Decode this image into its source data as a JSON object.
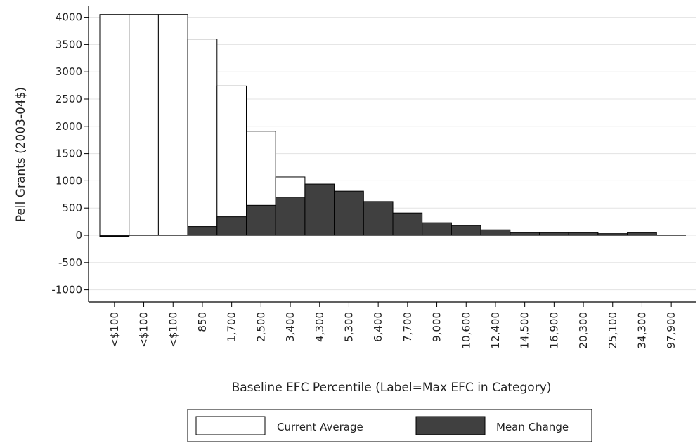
{
  "chart_data": {
    "type": "bar",
    "title": "",
    "xlabel": "Baseline EFC Percentile (Label=Max EFC in Category)",
    "ylabel": "Pell Grants (2003-04$)",
    "ylim": [
      -1000,
      4000
    ],
    "yticks": [
      4000,
      3500,
      3000,
      2500,
      2000,
      1500,
      1000,
      500,
      0,
      -500,
      -1000
    ],
    "grid": true,
    "legend_position": "bottom",
    "categories": [
      "<$100",
      "<$100",
      "<$100",
      "850",
      "1,700",
      "2,500",
      "3,400",
      "4,300",
      "5,300",
      "6,400",
      "7,700",
      "9,000",
      "10,600",
      "12,400",
      "14,500",
      "16,900",
      "20,300",
      "25,100",
      "34,300",
      "97,900"
    ],
    "series": [
      {
        "name": "Current Average",
        "color": "#ffffff",
        "values": [
          4050,
          4050,
          4050,
          3600,
          2740,
          1910,
          1070,
          0,
          0,
          0,
          0,
          0,
          0,
          0,
          0,
          0,
          0,
          0,
          0,
          0
        ]
      },
      {
        "name": "Mean Change",
        "color": "#404040",
        "values": [
          -20,
          0,
          0,
          160,
          340,
          550,
          700,
          940,
          810,
          620,
          410,
          230,
          180,
          100,
          50,
          50,
          50,
          30,
          50,
          0
        ]
      }
    ]
  }
}
